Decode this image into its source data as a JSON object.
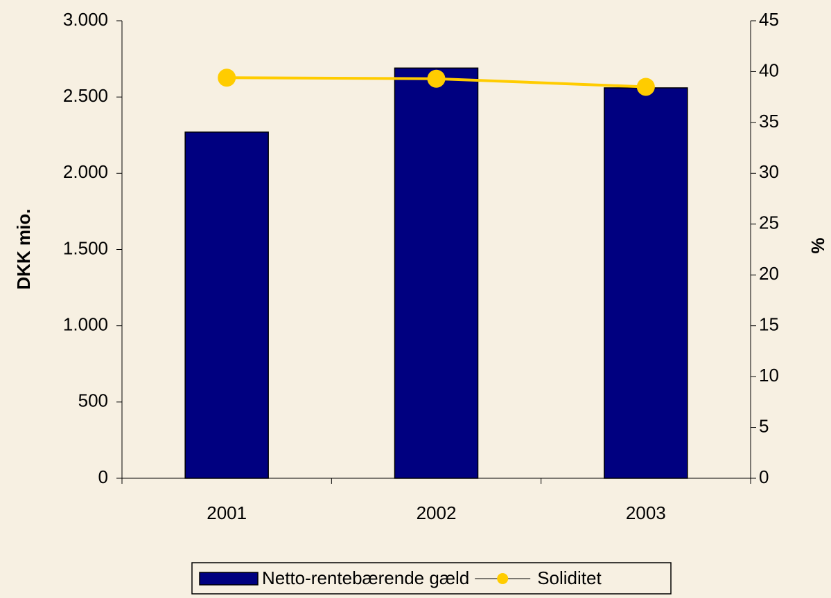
{
  "chart_data": {
    "type": "bar",
    "ylabel": "DKK mio.",
    "y2label": "%",
    "categories": [
      "2001",
      "2002",
      "2003"
    ],
    "series": [
      {
        "name": "Netto-rentebærende gæld",
        "type": "bar",
        "color": "#000080",
        "values": [
          2270,
          2690,
          2560
        ]
      },
      {
        "name": "Soliditet",
        "type": "line",
        "axis": "y2",
        "color": "#ffcc00",
        "values": [
          39.4,
          39.3,
          38.5
        ]
      }
    ],
    "ylim": [
      0,
      3000
    ],
    "yticks": [
      0,
      500,
      {
        "value": 1000,
        "label": "1.000"
      },
      {
        "value": 1500,
        "label": "1.500"
      },
      {
        "value": 2000,
        "label": "2.000"
      },
      {
        "value": 2500,
        "label": "2.500"
      },
      {
        "value": 3000,
        "label": "3.000"
      }
    ],
    "y2lim": [
      0,
      45
    ],
    "y2ticks": [
      0,
      5,
      10,
      15,
      20,
      25,
      30,
      35,
      40,
      45
    ],
    "legend": "bottom"
  }
}
